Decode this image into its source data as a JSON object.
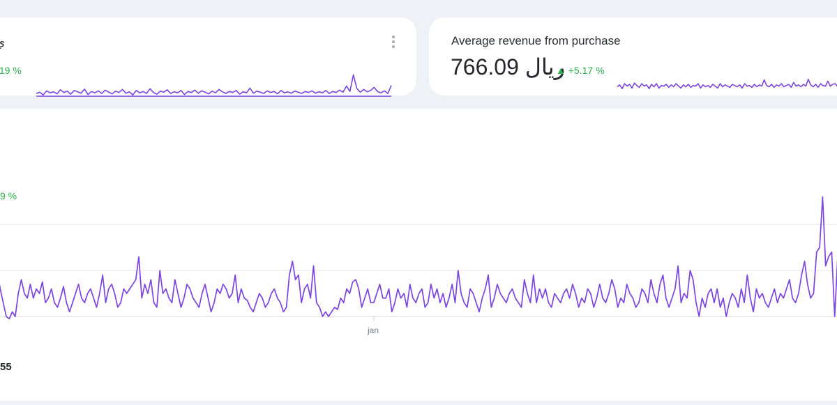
{
  "colors": {
    "line": "#7b44e0",
    "positive": "#2bb24c",
    "grid": "#e3e6eb",
    "background": "#eef1f6",
    "card": "#ffffff"
  },
  "cards": [
    {
      "title_fragment": "ي",
      "delta": ".19 %",
      "menu_icon": "more-vertical-icon"
    },
    {
      "title": "Average revenue from purchase",
      "value": "766.09 ريال",
      "delta_arrow": "▲",
      "delta": "+5.17 %"
    }
  ],
  "main": {
    "delta_fragment": "9 %",
    "x_tick_label": "jan",
    "footer_fragment": "55"
  },
  "chart_data": [
    {
      "type": "line",
      "series": [
        {
          "values": [
            3,
            3.4,
            2.6,
            3.8,
            3.2,
            3.5,
            2.9,
            4.1,
            3.3,
            3.7,
            2.8,
            3.9,
            3.5,
            3.1,
            4.3,
            2.7,
            3.6,
            3.2,
            3.8,
            3.0,
            4.0,
            3.4,
            2.9,
            3.7,
            3.3,
            4.2,
            3.1,
            3.5,
            2.6,
            3.9,
            3.2,
            3.6,
            3.0,
            4.4,
            3.3,
            2.8,
            3.7,
            3.4,
            4.1,
            3.0,
            3.5,
            3.2,
            3.9,
            2.7,
            3.6,
            3.3,
            4.0,
            3.1,
            3.8,
            3.4,
            2.9,
            3.7,
            3.2,
            4.2,
            3.5,
            3.0,
            3.6,
            3.3,
            3.9,
            2.8,
            3.5,
            3.2,
            4.6,
            3.1,
            3.7,
            3.4,
            3.0,
            3.8,
            3.3,
            3.6,
            2.9,
            3.9,
            3.2,
            3.5,
            3.1,
            3.7,
            3.4,
            3.0,
            3.6,
            3.3,
            3.8,
            3.1,
            3.5,
            3.2,
            3.9,
            3.0,
            3.6,
            3.3,
            4.0,
            3.4,
            5.2,
            3.6,
            8.5,
            4.5,
            3.4,
            4.2,
            3.5,
            3.9,
            4.8,
            3.6,
            3.2,
            3.8,
            3.0,
            5.4
          ]
        }
      ]
    },
    {
      "type": "line",
      "series": [
        {
          "values": [
            4.5,
            4.8,
            4.2,
            5.0,
            4.6,
            4.9,
            4.3,
            5.1,
            4.7,
            4.4,
            5.0,
            4.6,
            4.8,
            4.2,
            4.9,
            4.5,
            5.0,
            4.3,
            4.7,
            4.6,
            4.9,
            4.4,
            4.8,
            4.5,
            5.0,
            4.6,
            4.3,
            4.8,
            4.5,
            4.9,
            4.4,
            4.7,
            4.6,
            5.0,
            4.3,
            4.8,
            4.5,
            4.7,
            4.4,
            4.9,
            4.6,
            4.3,
            5.0,
            4.5,
            4.8,
            4.6,
            4.4,
            4.9,
            4.7,
            4.5,
            4.8,
            4.3,
            5.0,
            4.6,
            4.7,
            4.4,
            4.9,
            4.5,
            4.8,
            4.6,
            5.6,
            4.7,
            4.5,
            4.9,
            4.4,
            4.8,
            4.6,
            5.0,
            4.5,
            4.7,
            4.9,
            4.4,
            5.2,
            4.6,
            4.8,
            4.5,
            4.9,
            4.6,
            5.7,
            4.8,
            4.5,
            4.9,
            4.4,
            5.0,
            4.7,
            4.6,
            5.4,
            4.6,
            4.9,
            5.0,
            4.5,
            5.6,
            4.8,
            4.7,
            5.3
          ]
        }
      ]
    },
    {
      "type": "line",
      "series": [
        {
          "values": [
            2.0,
            1.6,
            1.3,
            1.0,
            0.95,
            1.1,
            1.0,
            1.5,
            1.8,
            1.5,
            1.4,
            1.7,
            1.4,
            1.6,
            1.5,
            1.75,
            1.3,
            1.4,
            1.6,
            1.3,
            1.2,
            1.4,
            1.65,
            1.3,
            1.1,
            1.3,
            1.5,
            1.7,
            1.4,
            1.3,
            1.5,
            1.6,
            1.4,
            1.2,
            1.5,
            1.9,
            1.3,
            1.6,
            1.7,
            1.5,
            1.2,
            1.3,
            1.6,
            1.5,
            1.6,
            1.7,
            1.8,
            2.3,
            1.4,
            1.7,
            1.5,
            1.8,
            1.3,
            1.2,
            2.0,
            1.5,
            1.6,
            1.4,
            1.3,
            1.8,
            1.5,
            1.2,
            1.4,
            1.7,
            1.6,
            1.4,
            1.3,
            1.2,
            1.5,
            1.7,
            1.4,
            1.1,
            1.3,
            1.6,
            1.5,
            1.7,
            1.6,
            1.4,
            1.5,
            1.9,
            1.3,
            1.6,
            1.4,
            1.35,
            1.2,
            1.1,
            1.3,
            1.5,
            1.4,
            1.2,
            1.3,
            1.5,
            1.6,
            1.4,
            1.3,
            1.1,
            1.2,
            1.9,
            2.2,
            1.8,
            1.9,
            1.3,
            1.6,
            1.7,
            1.4,
            2.1,
            1.3,
            1.2,
            1.0,
            1.1,
            1.0,
            1.1,
            1.2,
            1.15,
            1.4,
            1.3,
            1.6,
            1.5,
            1.75,
            1.8,
            1.6,
            1.2,
            1.4,
            1.6,
            1.3,
            1.3,
            1.5,
            1.7,
            1.4,
            1.4,
            1.6,
            1.1,
            1.3,
            1.6,
            1.4,
            1.5,
            1.2,
            1.7,
            1.4,
            1.3,
            1.5,
            1.6,
            1.2,
            1.3,
            1.7,
            1.4,
            1.6,
            1.3,
            1.5,
            1.2,
            1.4,
            1.7,
            1.3,
            2.0,
            1.5,
            1.3,
            1.2,
            1.6,
            1.5,
            1.3,
            1.1,
            1.4,
            1.6,
            1.9,
            1.2,
            1.4,
            1.7,
            1.5,
            1.4,
            1.3,
            1.5,
            1.6,
            1.4,
            1.3,
            1.2,
            1.8,
            1.5,
            1.3,
            1.9,
            1.3,
            1.6,
            1.4,
            1.6,
            1.3,
            1.2,
            1.5,
            1.4,
            1.3,
            1.5,
            1.6,
            1.4,
            1.7,
            1.5,
            1.2,
            1.4,
            1.3,
            1.6,
            1.5,
            1.2,
            1.4,
            1.7,
            1.4,
            1.3,
            1.5,
            1.8,
            1.6,
            1.2,
            1.4,
            1.3,
            1.7,
            1.5,
            1.4,
            1.2,
            1.3,
            1.6,
            1.5,
            1.3,
            1.8,
            1.5,
            1.3,
            1.7,
            1.9,
            1.4,
            1.2,
            1.4,
            1.6,
            2.1,
            1.3,
            1.5,
            1.4,
            2.0,
            1.8,
            1.3,
            1.0,
            1.4,
            1.2,
            1.5,
            1.6,
            1.3,
            1.6,
            1.2,
            1.4,
            1.0,
            1.3,
            1.5,
            1.4,
            1.2,
            1.6,
            1.3,
            1.9,
            1.4,
            1.1,
            1.6,
            1.4,
            1.5,
            1.3,
            1.2,
            1.4,
            1.6,
            1.3,
            1.5,
            1.4,
            1.6,
            1.8,
            1.4,
            1.3,
            1.5,
            1.9,
            2.2,
            1.7,
            1.4,
            1.5,
            2.4,
            2.5,
            3.6,
            2.1,
            2.3,
            2.4,
            1.0,
            2.3
          ]
        }
      ],
      "gridlines": [
        1,
        2,
        3
      ],
      "ylim": [
        1,
        3
      ],
      "x_tick_label": "jan"
    }
  ]
}
